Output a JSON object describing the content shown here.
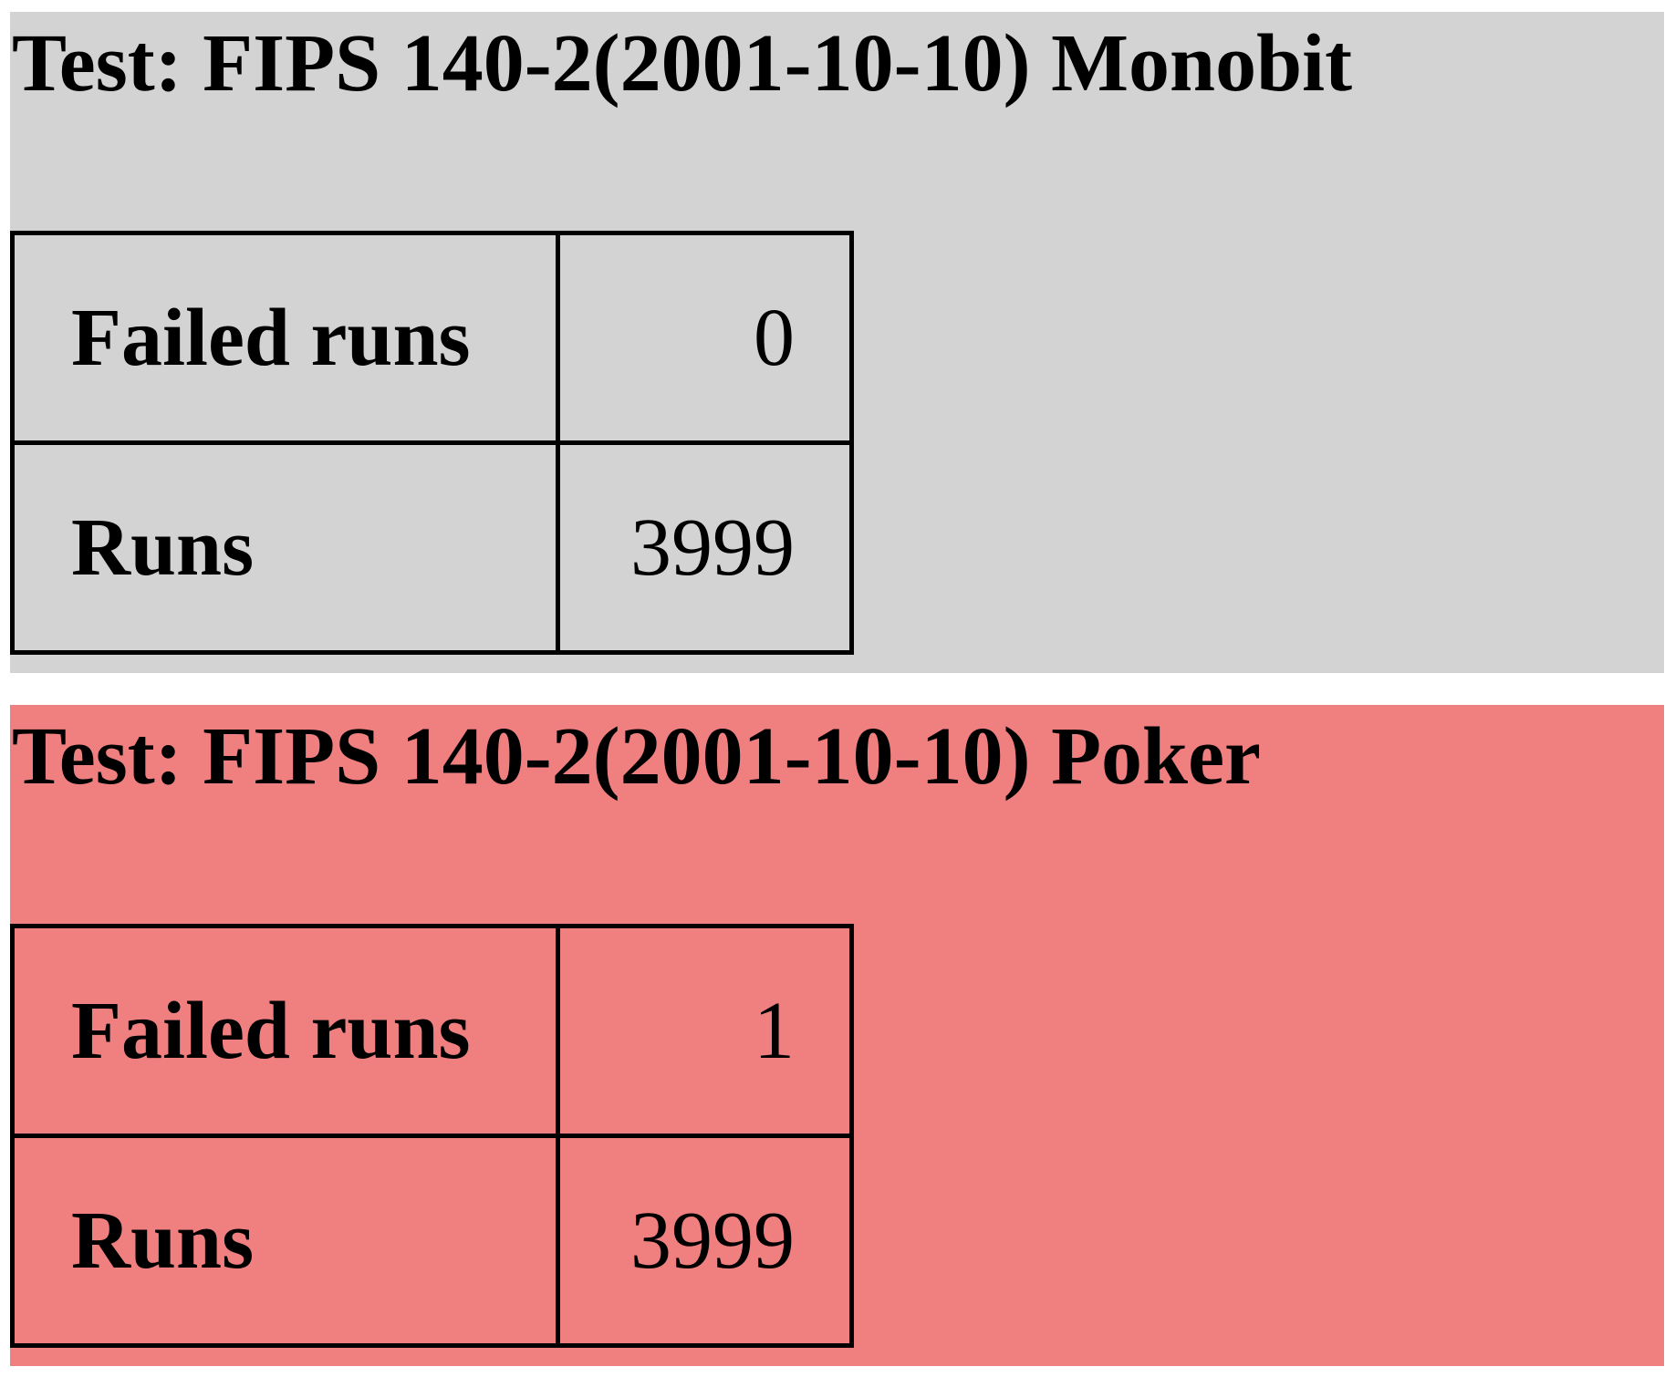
{
  "tests": [
    {
      "title": "Test: FIPS 140-2(2001-10-10) Monobit",
      "background": "#d3d3d3",
      "rows": [
        {
          "label": "Failed runs",
          "value": "0"
        },
        {
          "label": "Runs",
          "value": "3999"
        }
      ]
    },
    {
      "title": "Test: FIPS 140-2(2001-10-10) Poker",
      "background": "#f08080",
      "rows": [
        {
          "label": "Failed runs",
          "value": "1"
        },
        {
          "label": "Runs",
          "value": "3999"
        }
      ]
    }
  ]
}
